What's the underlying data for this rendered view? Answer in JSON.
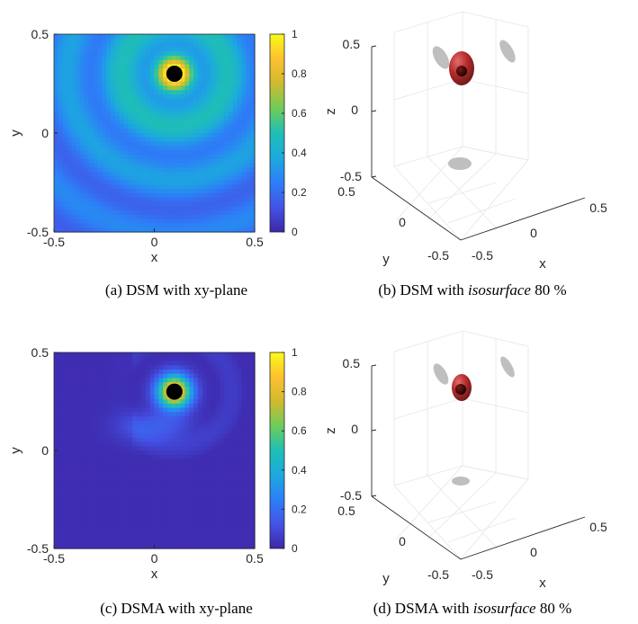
{
  "colors": {
    "colormap": [
      "#3e26a8",
      "#4354e6",
      "#2d7ff7",
      "#1ca9de",
      "#1fbfb5",
      "#6dcd59",
      "#d0ba2f",
      "#fdc130",
      "#f9fb15"
    ],
    "surface": "#b01818",
    "shadow": "#bfbfbf",
    "source": "#000000",
    "box": "#262626",
    "grid": "#e6e6e6"
  },
  "chart_data": [
    {
      "id": "a",
      "type": "heatmap",
      "caption": "(a)  DSM with xy-plane",
      "xlabel": "x",
      "ylabel": "y",
      "xlim": [
        -0.5,
        0.5
      ],
      "ylim": [
        -0.5,
        0.5
      ],
      "x_ticks": [
        "-0.5",
        "0",
        "0.5"
      ],
      "y_ticks": [
        "-0.5",
        "0",
        "0.5"
      ],
      "colorbar": {
        "range": [
          0,
          1
        ],
        "ticks": [
          "0",
          "0.2",
          "0.4",
          "0.6",
          "0.8",
          "1"
        ]
      },
      "source": {
        "x": 0.1,
        "y": 0.3
      },
      "peak": {
        "x": 0.1,
        "y": 0.3,
        "value": 1.0
      },
      "pattern": "broad concentric ripples"
    },
    {
      "id": "b",
      "type": "scatter",
      "caption_parts": [
        "(b)  DSM with ",
        "isosurface",
        " 80 %"
      ],
      "xlabel": "x",
      "ylabel": "y",
      "zlabel": "z",
      "x_ticks": [
        "-0.5",
        "0",
        "0.5"
      ],
      "y_ticks": [
        "-0.5",
        "0",
        "0.5"
      ],
      "z_ticks": [
        "-0.5",
        "0",
        "0.5"
      ],
      "isosurface_level": 0.8,
      "source": {
        "x": 0.1,
        "y": 0.3,
        "z": 0.3
      }
    },
    {
      "id": "c",
      "type": "heatmap",
      "caption": "(c)  DSMA with xy-plane",
      "xlabel": "x",
      "ylabel": "y",
      "xlim": [
        -0.5,
        0.5
      ],
      "ylim": [
        -0.5,
        0.5
      ],
      "x_ticks": [
        "-0.5",
        "0",
        "0.5"
      ],
      "y_ticks": [
        "-0.5",
        "0",
        "0.5"
      ],
      "colorbar": {
        "range": [
          0,
          1
        ],
        "ticks": [
          "0",
          "0.2",
          "0.4",
          "0.6",
          "0.8",
          "1"
        ]
      },
      "source": {
        "x": 0.1,
        "y": 0.3
      },
      "peak": {
        "x": 0.1,
        "y": 0.3,
        "value": 1.0
      },
      "pattern": "sharp peak with weak side lobes"
    },
    {
      "id": "d",
      "type": "scatter",
      "caption_parts": [
        "(d)  DSMA with ",
        "isosurface",
        " 80 %"
      ],
      "xlabel": "x",
      "ylabel": "y",
      "zlabel": "z",
      "x_ticks": [
        "-0.5",
        "0",
        "0.5"
      ],
      "y_ticks": [
        "-0.5",
        "0",
        "0.5"
      ],
      "z_ticks": [
        "-0.5",
        "0",
        "0.5"
      ],
      "isosurface_level": 0.8,
      "source": {
        "x": 0.1,
        "y": 0.3,
        "z": 0.3
      }
    }
  ]
}
